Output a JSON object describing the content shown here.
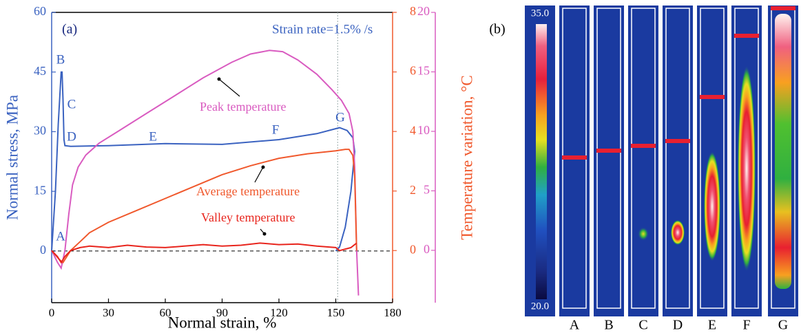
{
  "chart_data": {
    "type": "line",
    "panel_label": "(a)",
    "annotation": "Strain rate=1.5% /s",
    "xlabel": "Normal strain, %",
    "ylabel": "Normal stress, MPa",
    "y2label": "Temperature variation, °C",
    "xlim": [
      0,
      180
    ],
    "xticks": [
      0,
      30,
      60,
      90,
      120,
      150,
      180
    ],
    "ylim": [
      -13,
      60
    ],
    "yticks": [
      0,
      15,
      30,
      45,
      60
    ],
    "ycolor": "#3a62c0",
    "y2lim": [
      -1.75,
      8
    ],
    "y2ticks": [
      0,
      2,
      4,
      6,
      8
    ],
    "y2color": "#f0582c",
    "y3lim": [
      -4.4,
      20
    ],
    "y3ticks": [
      0,
      5,
      10,
      15,
      20
    ],
    "y3color": "#d95bc0",
    "point_labels": [
      "A",
      "B",
      "C",
      "D",
      "E",
      "F",
      "G"
    ],
    "series": [
      {
        "color": "#3a62c0",
        "axis": "y",
        "x": [
          0,
          2,
          3.5,
          5,
          5.5,
          6,
          6.5,
          7,
          10,
          30,
          60,
          90,
          120,
          140,
          152,
          156,
          159,
          160,
          158,
          155,
          152,
          150
        ],
        "values": [
          0,
          15,
          32,
          45,
          45,
          38,
          28,
          26.5,
          26.3,
          26.5,
          27,
          26.8,
          28,
          29.5,
          31,
          30.3,
          28.5,
          25,
          15,
          6,
          1,
          0
        ]
      },
      {
        "name": "Peak temperature",
        "color": "#d95bc0",
        "axis": "y3",
        "x": [
          0,
          3,
          5,
          7,
          9,
          11,
          14,
          18,
          25,
          35,
          50,
          65,
          80,
          95,
          105,
          115,
          122,
          130,
          140,
          148,
          153,
          157,
          159,
          160,
          161,
          162
        ],
        "values": [
          0,
          -1,
          -1.5,
          0,
          3,
          5.5,
          7,
          8,
          9,
          10,
          11.5,
          13,
          14.5,
          15.8,
          16.5,
          16.8,
          16.7,
          16,
          14.8,
          13.5,
          12.6,
          11.5,
          10,
          7,
          0,
          -3.8
        ]
      },
      {
        "name": "Average temperature",
        "color": "#f0582c",
        "axis": "y2",
        "x": [
          0,
          4,
          6,
          10,
          15,
          20,
          30,
          45,
          60,
          75,
          90,
          105,
          120,
          135,
          150,
          155,
          157,
          159,
          160,
          161
        ],
        "values": [
          0,
          -0.3,
          -0.4,
          0,
          0.3,
          0.6,
          0.95,
          1.35,
          1.75,
          2.15,
          2.55,
          2.85,
          3.1,
          3.25,
          3.35,
          3.4,
          3.4,
          3.2,
          2.5,
          0
        ]
      },
      {
        "name": "Valley temperature",
        "color": "#e8241c",
        "axis": "y2",
        "x": [
          0,
          3,
          5,
          7,
          10,
          15,
          20,
          30,
          40,
          50,
          60,
          70,
          80,
          90,
          100,
          110,
          120,
          130,
          140,
          150,
          152,
          155,
          158,
          160,
          161
        ],
        "values": [
          0,
          -0.2,
          -0.4,
          -0.2,
          0,
          0.1,
          0.15,
          0.1,
          0.18,
          0.12,
          0.1,
          0.15,
          0.2,
          0.15,
          0.18,
          0.25,
          0.2,
          0.22,
          0.15,
          0.1,
          0,
          0.05,
          0.1,
          0.2,
          0.25
        ]
      }
    ]
  },
  "panel_b": {
    "label": "(b)",
    "colorbar_max": "35.0",
    "colorbar_min": "20.0",
    "strips": [
      "A",
      "B",
      "C",
      "D",
      "E",
      "F",
      "G"
    ]
  }
}
